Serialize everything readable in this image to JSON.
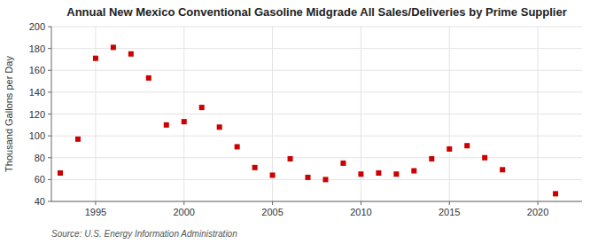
{
  "chart_data": {
    "type": "scatter",
    "title": "Annual New Mexico Conventional Gasoline Midgrade All Sales/Deliveries by Prime Supplier",
    "ylabel": "Thousand Gallons per Day",
    "annotations": [
      "Source: U.S. Energy Information Administration"
    ],
    "x": [
      1993,
      1994,
      1995,
      1996,
      1997,
      1998,
      1999,
      2000,
      2001,
      2002,
      2003,
      2004,
      2005,
      2006,
      2007,
      2008,
      2009,
      2010,
      2011,
      2012,
      2013,
      2014,
      2015,
      2016,
      2017,
      2018,
      2021
    ],
    "values": [
      66,
      97,
      171,
      181,
      175,
      153,
      110,
      113,
      126,
      108,
      90,
      71,
      64,
      79,
      62,
      60,
      75,
      65,
      66,
      65,
      68,
      79,
      88,
      91,
      80,
      69,
      47
    ],
    "color": "#cc0000",
    "marker": "square",
    "xlim": [
      1992.5,
      2022.5
    ],
    "xticks": [
      1995,
      2000,
      2005,
      2010,
      2015,
      2020
    ],
    "ylim": [
      40,
      200
    ],
    "yticks": [
      40,
      60,
      80,
      100,
      120,
      140,
      160,
      180,
      200
    ],
    "grid": true
  }
}
